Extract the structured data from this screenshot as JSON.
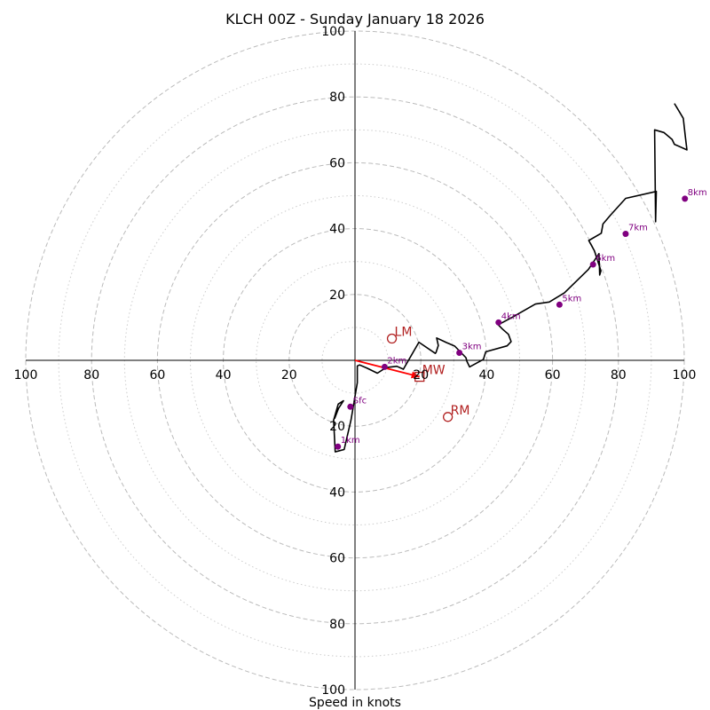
{
  "chart_data": {
    "type": "hodograph",
    "title": "KLCH 00Z - Sunday January 18 2026",
    "xlabel": "Speed in knots",
    "units": "knots",
    "range": [
      -100,
      100
    ],
    "rings_dashed": [
      20,
      40,
      60,
      80,
      100
    ],
    "rings_dotted": [
      10,
      30,
      50,
      70,
      90
    ],
    "x_tick_labels": [
      "100",
      "80",
      "60",
      "40",
      "20",
      "20",
      "40",
      "60",
      "80",
      "100"
    ],
    "x_tick_values": [
      -100,
      -80,
      -60,
      -40,
      -20,
      20,
      40,
      60,
      80,
      100
    ],
    "y_tick_labels": [
      "100",
      "80",
      "60",
      "40",
      "20",
      "20",
      "40",
      "60",
      "80",
      "100"
    ],
    "y_tick_values": [
      100,
      80,
      60,
      40,
      20,
      -20,
      -40,
      -60,
      -80,
      -100
    ],
    "hodograph_line": [
      [
        -6.2,
        -17.7
      ],
      [
        -5,
        -14.6
      ],
      [
        -3.5,
        -12.3
      ],
      [
        -5.1,
        -13.3
      ],
      [
        -6.5,
        -18.2
      ],
      [
        -6.0,
        -27.8
      ],
      [
        -3.3,
        -27.1
      ],
      [
        -1.2,
        -18.1
      ],
      [
        0.7,
        -6.8
      ],
      [
        0.7,
        -1.7
      ],
      [
        1.4,
        -1.4
      ],
      [
        3.7,
        -2.4
      ],
      [
        6.8,
        -3.9
      ],
      [
        9.4,
        -2.2
      ],
      [
        12.7,
        -1.8
      ],
      [
        14.7,
        -2.7
      ],
      [
        19.4,
        5.5
      ],
      [
        24.4,
        2.1
      ],
      [
        24.6,
        2.4
      ],
      [
        25.3,
        4.5
      ],
      [
        24.8,
        6.8
      ],
      [
        27.8,
        5.4
      ],
      [
        30.3,
        4.3
      ],
      [
        33.7,
        0.8
      ],
      [
        34.0,
        -0.3
      ],
      [
        34.8,
        -2.0
      ],
      [
        39.0,
        0.3
      ],
      [
        39.7,
        2.6
      ],
      [
        46.2,
        4.4
      ],
      [
        47.4,
        5.7
      ],
      [
        46.6,
        7.9
      ],
      [
        44.8,
        9.5
      ],
      [
        43.5,
        10.8
      ],
      [
        47.8,
        13.1
      ],
      [
        54.8,
        17.1
      ],
      [
        59.0,
        17.7
      ],
      [
        63.6,
        20.5
      ],
      [
        70.9,
        27.6
      ],
      [
        74.1,
        32.4
      ],
      [
        74.3,
        25.9
      ],
      [
        74.7,
        27.2
      ],
      [
        72.7,
        33.3
      ],
      [
        71.0,
        36.4
      ],
      [
        74.8,
        38.6
      ],
      [
        75.3,
        41.4
      ],
      [
        77.6,
        44.1
      ],
      [
        82.2,
        49.2
      ],
      [
        91.5,
        51.3
      ],
      [
        91.3,
        42.1
      ],
      [
        91.0,
        70.0
      ],
      [
        93.8,
        69.2
      ],
      [
        96.3,
        67.1
      ],
      [
        97.0,
        65.6
      ],
      [
        100.8,
        63.9
      ],
      [
        100.3,
        68.2
      ],
      [
        99.7,
        73.5
      ],
      [
        97.0,
        78.0
      ]
    ],
    "height_markers": [
      {
        "label": "Sfc",
        "u": -1.4,
        "v": -14.1
      },
      {
        "label": "1km",
        "u": -5.2,
        "v": -26.2
      },
      {
        "label": "2km",
        "u": 9.0,
        "v": -2.0
      },
      {
        "label": "3km",
        "u": 31.7,
        "v": 2.3
      },
      {
        "label": "4km",
        "u": 43.6,
        "v": 11.5
      },
      {
        "label": "5km",
        "u": 62.1,
        "v": 16.9
      },
      {
        "label": "6km",
        "u": 72.3,
        "v": 29.1
      },
      {
        "label": "7km",
        "u": 82.2,
        "v": 38.4
      },
      {
        "label": "8km",
        "u": 100.2,
        "v": 49.1
      }
    ],
    "motion_markers": [
      {
        "label": "LM",
        "u": 11.2,
        "v": 6.6,
        "shape": "circle"
      },
      {
        "label": "RM",
        "u": 28.2,
        "v": -17.2,
        "shape": "circle"
      },
      {
        "label": "MW",
        "u": 19.6,
        "v": -5.0,
        "shape": "square"
      }
    ],
    "shear_vector": {
      "from": [
        0,
        0
      ],
      "to": [
        19.6,
        -5.0
      ]
    },
    "colors": {
      "hodograph": "#000000",
      "height_markers": "#800080",
      "motion": "#b22222",
      "shear": "#ff0000",
      "grid": "#bbbbbb",
      "axis": "#000000"
    }
  }
}
